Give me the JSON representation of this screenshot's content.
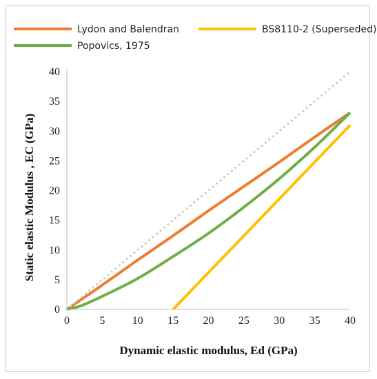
{
  "chart_data": {
    "type": "line",
    "xlabel": "Dynamic elastic modulus, Ed (GPa)",
    "ylabel": "Static elastic Modulus , EC (GPa)",
    "xlim": [
      0,
      40
    ],
    "ylim": [
      0,
      40
    ],
    "x_ticks": [
      0,
      5,
      10,
      15,
      20,
      25,
      30,
      35,
      40
    ],
    "y_ticks": [
      0,
      5,
      10,
      15,
      20,
      25,
      30,
      35,
      40
    ],
    "grid": false,
    "legend_position": "top",
    "series": [
      {
        "name": "Lydon and Balendran",
        "color": "#ED7D31",
        "x": [
          0,
          5,
          10,
          15,
          20,
          25,
          30,
          35,
          40
        ],
        "y": [
          0,
          4.1,
          8.3,
          12.4,
          16.6,
          20.7,
          24.8,
          29.0,
          33.1
        ]
      },
      {
        "name": "BS8110-2 (Superseded)",
        "color": "#FFC000",
        "x": [
          15,
          20,
          25,
          30,
          35,
          40
        ],
        "y": [
          0,
          6.2,
          12.4,
          18.6,
          24.8,
          31.0
        ]
      },
      {
        "name": "Popovics, 1975",
        "color": "#70AD47",
        "x": [
          0,
          2,
          5,
          10,
          15,
          20,
          25,
          30,
          35,
          40
        ],
        "y": [
          0,
          0.6,
          2.2,
          5.2,
          8.9,
          12.8,
          17.2,
          22.0,
          27.3,
          33.1
        ]
      },
      {
        "name": "",
        "color": "#C8C8C8",
        "dashed": true,
        "x": [
          0,
          40
        ],
        "y": [
          0,
          40
        ]
      }
    ]
  }
}
